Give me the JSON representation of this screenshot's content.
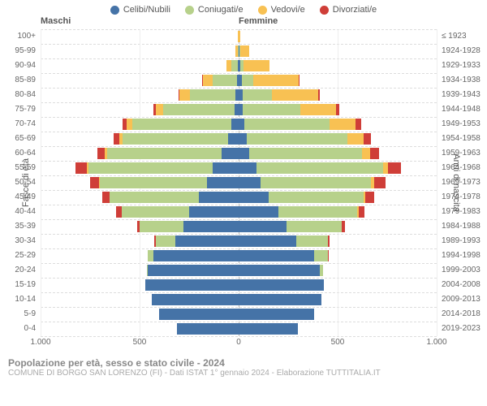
{
  "legend": [
    {
      "label": "Celibi/Nubili",
      "color": "#4573a7"
    },
    {
      "label": "Coniugati/e",
      "color": "#b7d18b"
    },
    {
      "label": "Vedovi/e",
      "color": "#f8c153"
    },
    {
      "label": "Divorziati/e",
      "color": "#cf3e38"
    }
  ],
  "headers": {
    "male": "Maschi",
    "female": "Femmine"
  },
  "axis": {
    "left_title": "Fasce di età",
    "right_title": "Anni di nascita",
    "xmax": 1000,
    "xticks_left": [
      1000,
      500,
      0
    ],
    "xticks_right": [
      500,
      1000
    ],
    "xtick_labels_left": [
      "1.000",
      "500",
      "0"
    ],
    "xtick_labels_right": [
      "500",
      "1.000"
    ]
  },
  "colors": {
    "single": "#4573a7",
    "married": "#b7d18b",
    "widowed": "#f8c153",
    "divorced": "#cf3e38",
    "grid": "#dddddd",
    "background": "#ffffff"
  },
  "fontsize": {
    "legend": 11,
    "ticks": 10,
    "title": 12
  },
  "ageGroups": [
    {
      "label": "100+",
      "years": "≤ 1923",
      "m": {
        "single": 0,
        "married": 0,
        "widowed": 3,
        "divorced": 0
      },
      "f": {
        "single": 0,
        "married": 0,
        "widowed": 10,
        "divorced": 0
      }
    },
    {
      "label": "95-99",
      "years": "1924-1928",
      "m": {
        "single": 0,
        "married": 5,
        "widowed": 10,
        "divorced": 0
      },
      "f": {
        "single": 5,
        "married": 5,
        "widowed": 45,
        "divorced": 0
      }
    },
    {
      "label": "90-94",
      "years": "1929-1933",
      "m": {
        "single": 5,
        "married": 30,
        "widowed": 25,
        "divorced": 0
      },
      "f": {
        "single": 10,
        "married": 15,
        "widowed": 130,
        "divorced": 0
      }
    },
    {
      "label": "85-89",
      "years": "1934-1938",
      "m": {
        "single": 10,
        "married": 120,
        "widowed": 50,
        "divorced": 3
      },
      "f": {
        "single": 15,
        "married": 60,
        "widowed": 230,
        "divorced": 3
      }
    },
    {
      "label": "80-84",
      "years": "1939-1943",
      "m": {
        "single": 15,
        "married": 230,
        "widowed": 55,
        "divorced": 5
      },
      "f": {
        "single": 20,
        "married": 150,
        "widowed": 230,
        "divorced": 10
      }
    },
    {
      "label": "75-79",
      "years": "1944-1948",
      "m": {
        "single": 20,
        "married": 360,
        "widowed": 40,
        "divorced": 12
      },
      "f": {
        "single": 20,
        "married": 290,
        "widowed": 180,
        "divorced": 18
      }
    },
    {
      "label": "70-74",
      "years": "1949-1953",
      "m": {
        "single": 35,
        "married": 500,
        "widowed": 30,
        "divorced": 20
      },
      "f": {
        "single": 30,
        "married": 430,
        "widowed": 130,
        "divorced": 30
      }
    },
    {
      "label": "65-69",
      "years": "1954-1958",
      "m": {
        "single": 55,
        "married": 530,
        "widowed": 18,
        "divorced": 30
      },
      "f": {
        "single": 40,
        "married": 510,
        "widowed": 80,
        "divorced": 40
      }
    },
    {
      "label": "60-64",
      "years": "1959-1963",
      "m": {
        "single": 85,
        "married": 580,
        "widowed": 10,
        "divorced": 40
      },
      "f": {
        "single": 55,
        "married": 570,
        "widowed": 40,
        "divorced": 45
      }
    },
    {
      "label": "55-59",
      "years": "1964-1968",
      "m": {
        "single": 130,
        "married": 630,
        "widowed": 8,
        "divorced": 55
      },
      "f": {
        "single": 90,
        "married": 640,
        "widowed": 25,
        "divorced": 65
      }
    },
    {
      "label": "50-54",
      "years": "1969-1973",
      "m": {
        "single": 160,
        "married": 540,
        "widowed": 5,
        "divorced": 45
      },
      "f": {
        "single": 110,
        "married": 560,
        "widowed": 15,
        "divorced": 55
      }
    },
    {
      "label": "45-49",
      "years": "1974-1978",
      "m": {
        "single": 200,
        "married": 450,
        "widowed": 3,
        "divorced": 35
      },
      "f": {
        "single": 150,
        "married": 480,
        "widowed": 8,
        "divorced": 45
      }
    },
    {
      "label": "40-44",
      "years": "1979-1983",
      "m": {
        "single": 250,
        "married": 340,
        "widowed": 2,
        "divorced": 25
      },
      "f": {
        "single": 200,
        "married": 400,
        "widowed": 5,
        "divorced": 30
      }
    },
    {
      "label": "35-39",
      "years": "1984-1988",
      "m": {
        "single": 280,
        "married": 220,
        "widowed": 0,
        "divorced": 12
      },
      "f": {
        "single": 240,
        "married": 280,
        "widowed": 2,
        "divorced": 15
      }
    },
    {
      "label": "30-34",
      "years": "1989-1993",
      "m": {
        "single": 320,
        "married": 100,
        "widowed": 0,
        "divorced": 5
      },
      "f": {
        "single": 290,
        "married": 160,
        "widowed": 0,
        "divorced": 8
      }
    },
    {
      "label": "25-29",
      "years": "1994-1998",
      "m": {
        "single": 430,
        "married": 30,
        "widowed": 0,
        "divorced": 0
      },
      "f": {
        "single": 380,
        "married": 70,
        "widowed": 0,
        "divorced": 2
      }
    },
    {
      "label": "20-24",
      "years": "1999-2003",
      "m": {
        "single": 460,
        "married": 5,
        "widowed": 0,
        "divorced": 0
      },
      "f": {
        "single": 410,
        "married": 15,
        "widowed": 0,
        "divorced": 0
      }
    },
    {
      "label": "15-19",
      "years": "2004-2008",
      "m": {
        "single": 470,
        "married": 0,
        "widowed": 0,
        "divorced": 0
      },
      "f": {
        "single": 430,
        "married": 0,
        "widowed": 0,
        "divorced": 0
      }
    },
    {
      "label": "10-14",
      "years": "2009-2013",
      "m": {
        "single": 440,
        "married": 0,
        "widowed": 0,
        "divorced": 0
      },
      "f": {
        "single": 420,
        "married": 0,
        "widowed": 0,
        "divorced": 0
      }
    },
    {
      "label": "5-9",
      "years": "2014-2018",
      "m": {
        "single": 400,
        "married": 0,
        "widowed": 0,
        "divorced": 0
      },
      "f": {
        "single": 380,
        "married": 0,
        "widowed": 0,
        "divorced": 0
      }
    },
    {
      "label": "0-4",
      "years": "2019-2023",
      "m": {
        "single": 310,
        "married": 0,
        "widowed": 0,
        "divorced": 0
      },
      "f": {
        "single": 300,
        "married": 0,
        "widowed": 0,
        "divorced": 0
      }
    }
  ],
  "footer": {
    "title": "Popolazione per età, sesso e stato civile - 2024",
    "subtitle": "COMUNE DI BORGO SAN LORENZO (FI) - Dati ISTAT 1° gennaio 2024 - Elaborazione TUTTITALIA.IT"
  }
}
